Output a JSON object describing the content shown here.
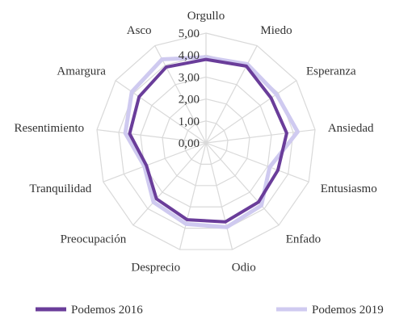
{
  "chart_data": {
    "type": "radar",
    "title": "",
    "categories": [
      "Orgullo",
      "Miedo",
      "Esperanza",
      "Ansiedad",
      "Entusiasmo",
      "Enfado",
      "Odio",
      "Desprecio",
      "Preocupación",
      "Tranquilidad",
      "Resentimiento",
      "Amargura",
      "Asco"
    ],
    "rlim": [
      0,
      5
    ],
    "ticks": [
      "0,00",
      "1,00",
      "2,00",
      "3,00",
      "4,00",
      "5,00"
    ],
    "tick_values": [
      0,
      1,
      2,
      3,
      4,
      5
    ],
    "grid": true,
    "legend_position": "bottom",
    "series": [
      {
        "name": "Podemos 2016",
        "color": "#6a3d9a",
        "values": [
          3.8,
          3.95,
          3.6,
          3.7,
          3.5,
          3.6,
          3.7,
          3.6,
          3.4,
          2.9,
          3.5,
          3.7,
          3.9
        ]
      },
      {
        "name": "Podemos 2019",
        "color": "#cfcaf0",
        "values": [
          3.9,
          4.05,
          3.9,
          4.2,
          3.1,
          3.8,
          3.95,
          3.8,
          3.6,
          3.0,
          3.7,
          4.1,
          4.3
        ]
      }
    ]
  }
}
